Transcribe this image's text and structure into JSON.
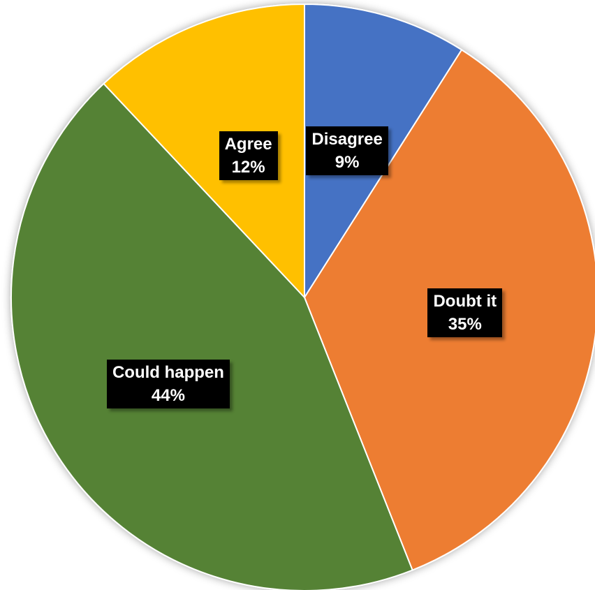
{
  "chart_data": {
    "type": "pie",
    "categories": [
      "Disagree",
      "Doubt it",
      "Could happen",
      "Agree"
    ],
    "values": [
      9,
      35,
      44,
      12
    ],
    "value_labels": [
      "9%",
      "35%",
      "44%",
      "12%"
    ],
    "colors": [
      "#4472C4",
      "#ED7D31",
      "#548235",
      "#FFC000"
    ],
    "start_angle_deg": 0,
    "direction": "clockwise",
    "legend": "none",
    "data_label_style": "black box, white bold text, category and percent"
  }
}
